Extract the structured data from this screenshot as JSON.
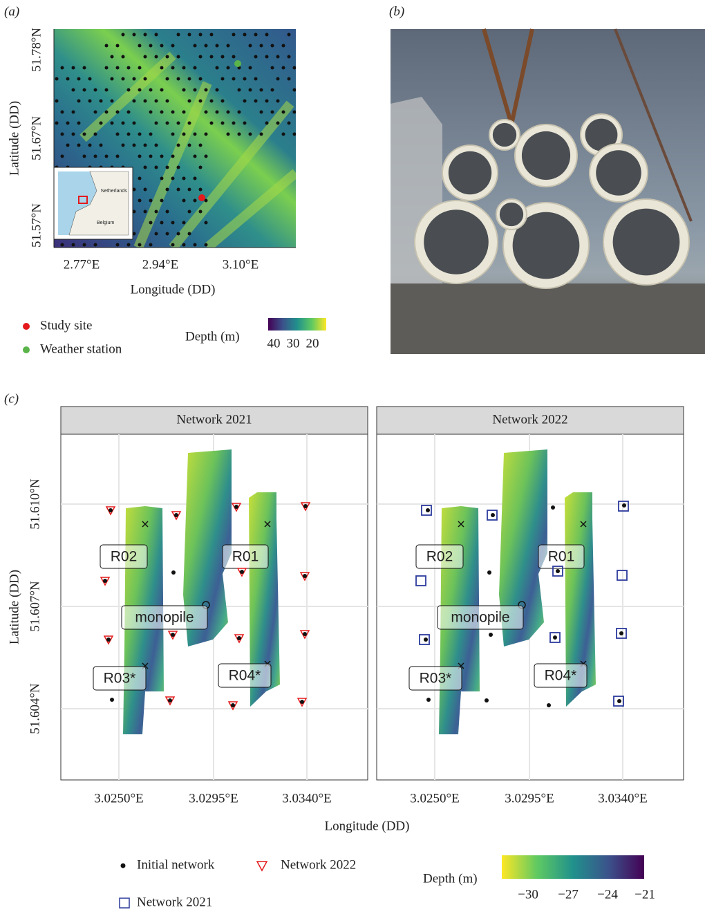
{
  "panel_a": {
    "label": "(a)",
    "y_ticks": [
      "51.78°N",
      "51.67°N",
      "51.57°N"
    ],
    "x_ticks": [
      "2.77°E",
      "2.94°E",
      "3.10°E"
    ],
    "x_axis_title": "Longitude (DD)",
    "y_axis_title": "Latitude (DD)",
    "inset_labels": [
      "Netherlands",
      "Belgium"
    ],
    "legend": [
      {
        "label": "Study site",
        "color": "#e41a1c"
      },
      {
        "label": "Weather station",
        "color": "#5ab44a"
      }
    ],
    "colorbar": {
      "title": "Depth (m)",
      "ticks": [
        "40",
        "30",
        "20"
      ]
    }
  },
  "panel_b": {
    "label": "(b)"
  },
  "panel_c": {
    "label": "(c)",
    "facets": [
      "Network 2021",
      "Network 2022"
    ],
    "y_ticks": [
      "51.610°N",
      "51.607°N",
      "51.604°N"
    ],
    "x_ticks": [
      "3.0250°E",
      "3.0295°E",
      "3.0340°E"
    ],
    "x_axis_title": "Longitude (DD)",
    "y_axis_title": "Latitude (DD)",
    "site_labels": [
      "R02",
      "R01",
      "monopile",
      "R03*",
      "R04*"
    ],
    "legend": [
      "Initial network",
      "Network 2022",
      "Network 2021"
    ],
    "colorbar": {
      "title": "Depth (m)",
      "ticks": [
        "−30",
        "−27",
        "−24",
        "−21"
      ]
    }
  }
}
